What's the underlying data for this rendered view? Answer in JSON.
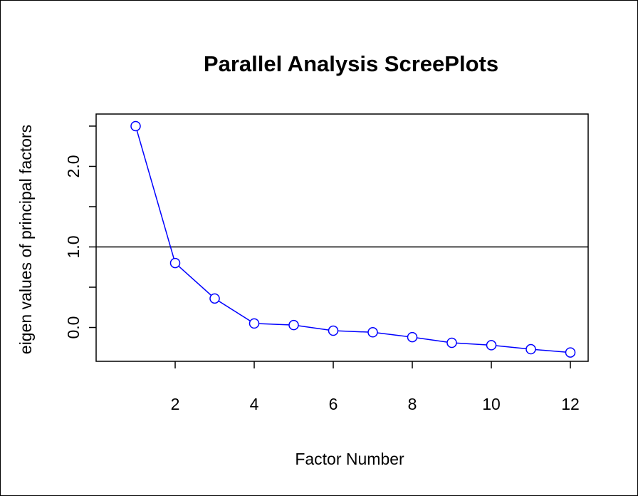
{
  "chart_data": {
    "type": "line",
    "title": "Parallel Analysis ScreePlots",
    "xlabel": "Factor Number",
    "ylabel": "eigen values of principal factors",
    "x": [
      1,
      2,
      3,
      4,
      5,
      6,
      7,
      8,
      9,
      10,
      11,
      12
    ],
    "series": [
      {
        "name": null,
        "color": "#0000ff",
        "values": [
          2.5,
          0.8,
          0.36,
          0.05,
          0.03,
          -0.04,
          -0.06,
          -0.12,
          -0.19,
          -0.22,
          -0.27,
          -0.31
        ]
      }
    ],
    "xlim": [
      0,
      12.45
    ],
    "ylim": [
      -0.42,
      2.65
    ],
    "xticks": [
      2,
      4,
      6,
      8,
      10,
      12
    ],
    "yticks": [
      {
        "value": 0,
        "label": "0.0"
      },
      {
        "value": 0.5,
        "label": null
      },
      {
        "value": 1,
        "label": "1.0"
      },
      {
        "value": 1.5,
        "label": null
      },
      {
        "value": 2,
        "label": "2.0"
      },
      {
        "value": 2.5,
        "label": null
      }
    ],
    "hline": 1,
    "grid": false
  }
}
